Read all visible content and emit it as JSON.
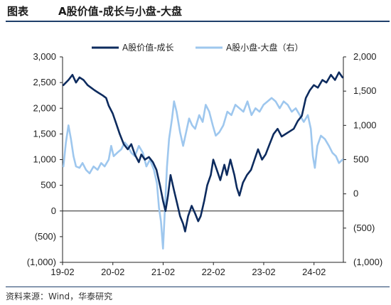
{
  "header": {
    "label": "图表",
    "title": "A股价值-成长与小盘-大盘"
  },
  "footer": {
    "source": "资料来源：Wind，华泰研究"
  },
  "chart_data": {
    "type": "line",
    "title": "A股价值-成长与小盘-大盘",
    "legend_position": "top",
    "x_ticks": [
      "19-02",
      "20-02",
      "21-02",
      "22-02",
      "23-02",
      "24-02"
    ],
    "y_left": {
      "ylim": [
        -1000,
        3000
      ],
      "tick_values": [
        3000,
        2500,
        2000,
        1500,
        1000,
        500,
        0,
        -500,
        -1000
      ],
      "tick_labels": [
        "3,000",
        "2,500",
        "2,000",
        "1,500",
        "1,000",
        "500",
        "0",
        "(500)",
        "(1,000)"
      ]
    },
    "y_right": {
      "ylim": [
        -1000,
        2000
      ],
      "tick_values": [
        2000,
        1500,
        1000,
        500,
        0,
        -500,
        -1000
      ],
      "tick_labels": [
        "2,000",
        "1,500",
        "1,000",
        "500",
        "0",
        "(500)",
        "(1,000)"
      ]
    },
    "x_range": [
      2019.083,
      2024.667
    ],
    "series": [
      {
        "name": "A股价值-成长",
        "axis": "left",
        "color": "#0d2b5e",
        "points": [
          [
            2019.1,
            2450
          ],
          [
            2019.2,
            2550
          ],
          [
            2019.28,
            2650
          ],
          [
            2019.35,
            2500
          ],
          [
            2019.42,
            2600
          ],
          [
            2019.5,
            2550
          ],
          [
            2019.58,
            2450
          ],
          [
            2019.65,
            2400
          ],
          [
            2019.72,
            2350
          ],
          [
            2019.8,
            2300
          ],
          [
            2019.88,
            2250
          ],
          [
            2019.95,
            2200
          ],
          [
            2020.0,
            2050
          ],
          [
            2020.08,
            1900
          ],
          [
            2020.15,
            1700
          ],
          [
            2020.22,
            1500
          ],
          [
            2020.3,
            1300
          ],
          [
            2020.38,
            1200
          ],
          [
            2020.45,
            1300
          ],
          [
            2020.52,
            1100
          ],
          [
            2020.6,
            950
          ],
          [
            2020.65,
            1100
          ],
          [
            2020.72,
            1000
          ],
          [
            2020.8,
            1050
          ],
          [
            2020.88,
            950
          ],
          [
            2020.95,
            800
          ],
          [
            2021.02,
            500
          ],
          [
            2021.08,
            200
          ],
          [
            2021.13,
            0
          ],
          [
            2021.18,
            300
          ],
          [
            2021.23,
            700
          ],
          [
            2021.3,
            400
          ],
          [
            2021.36,
            150
          ],
          [
            2021.42,
            -100
          ],
          [
            2021.48,
            -250
          ],
          [
            2021.52,
            -400
          ],
          [
            2021.58,
            -100
          ],
          [
            2021.65,
            100
          ],
          [
            2021.72,
            -50
          ],
          [
            2021.78,
            -200
          ],
          [
            2021.83,
            -100
          ],
          [
            2021.9,
            200
          ],
          [
            2021.96,
            500
          ],
          [
            2022.03,
            700
          ],
          [
            2022.08,
            1000
          ],
          [
            2022.15,
            800
          ],
          [
            2022.22,
            600
          ],
          [
            2022.3,
            900
          ],
          [
            2022.35,
            700
          ],
          [
            2022.42,
            1000
          ],
          [
            2022.5,
            700
          ],
          [
            2022.55,
            450
          ],
          [
            2022.6,
            300
          ],
          [
            2022.67,
            550
          ],
          [
            2022.75,
            700
          ],
          [
            2022.83,
            800
          ],
          [
            2022.9,
            1000
          ],
          [
            2022.97,
            1200
          ],
          [
            2023.05,
            1000
          ],
          [
            2023.12,
            1100
          ],
          [
            2023.2,
            1300
          ],
          [
            2023.28,
            1500
          ],
          [
            2023.36,
            1600
          ],
          [
            2023.44,
            1450
          ],
          [
            2023.52,
            1500
          ],
          [
            2023.6,
            1550
          ],
          [
            2023.68,
            1600
          ],
          [
            2023.76,
            1750
          ],
          [
            2023.84,
            1850
          ],
          [
            2023.92,
            2200
          ],
          [
            2024.0,
            2350
          ],
          [
            2024.08,
            2450
          ],
          [
            2024.16,
            2400
          ],
          [
            2024.25,
            2550
          ],
          [
            2024.33,
            2500
          ],
          [
            2024.42,
            2650
          ],
          [
            2024.5,
            2550
          ],
          [
            2024.58,
            2700
          ],
          [
            2024.65,
            2600
          ]
        ]
      },
      {
        "name": "A股小盘-大盘（右）",
        "axis": "right",
        "color": "#9ec7ee",
        "points": [
          [
            2019.1,
            400
          ],
          [
            2019.15,
            750
          ],
          [
            2019.2,
            1000
          ],
          [
            2019.25,
            800
          ],
          [
            2019.3,
            550
          ],
          [
            2019.35,
            400
          ],
          [
            2019.42,
            380
          ],
          [
            2019.48,
            450
          ],
          [
            2019.55,
            350
          ],
          [
            2019.62,
            300
          ],
          [
            2019.7,
            400
          ],
          [
            2019.78,
            350
          ],
          [
            2019.85,
            450
          ],
          [
            2019.92,
            400
          ],
          [
            2020.0,
            500
          ],
          [
            2020.05,
            700
          ],
          [
            2020.1,
            550
          ],
          [
            2020.17,
            600
          ],
          [
            2020.25,
            650
          ],
          [
            2020.32,
            750
          ],
          [
            2020.38,
            700
          ],
          [
            2020.45,
            600
          ],
          [
            2020.52,
            550
          ],
          [
            2020.6,
            700
          ],
          [
            2020.68,
            600
          ],
          [
            2020.75,
            400
          ],
          [
            2020.82,
            500
          ],
          [
            2020.9,
            350
          ],
          [
            2020.96,
            150
          ],
          [
            2021.0,
            -200
          ],
          [
            2021.04,
            -400
          ],
          [
            2021.08,
            -800
          ],
          [
            2021.12,
            -200
          ],
          [
            2021.16,
            400
          ],
          [
            2021.2,
            800
          ],
          [
            2021.26,
            1100
          ],
          [
            2021.3,
            1350
          ],
          [
            2021.35,
            1200
          ],
          [
            2021.42,
            900
          ],
          [
            2021.48,
            700
          ],
          [
            2021.54,
            900
          ],
          [
            2021.6,
            1100
          ],
          [
            2021.66,
            1000
          ],
          [
            2021.72,
            950
          ],
          [
            2021.8,
            1150
          ],
          [
            2021.87,
            1050
          ],
          [
            2021.93,
            1300
          ],
          [
            2022.0,
            1200
          ],
          [
            2022.07,
            1000
          ],
          [
            2022.13,
            850
          ],
          [
            2022.2,
            900
          ],
          [
            2022.28,
            1000
          ],
          [
            2022.36,
            1200
          ],
          [
            2022.44,
            1150
          ],
          [
            2022.52,
            1300
          ],
          [
            2022.6,
            1250
          ],
          [
            2022.68,
            1200
          ],
          [
            2022.76,
            1350
          ],
          [
            2022.84,
            1150
          ],
          [
            2022.92,
            1250
          ],
          [
            2023.0,
            1200
          ],
          [
            2023.08,
            1300
          ],
          [
            2023.16,
            1350
          ],
          [
            2023.24,
            1400
          ],
          [
            2023.32,
            1350
          ],
          [
            2023.4,
            1250
          ],
          [
            2023.48,
            1350
          ],
          [
            2023.56,
            1300
          ],
          [
            2023.64,
            1200
          ],
          [
            2023.72,
            1250
          ],
          [
            2023.8,
            1150
          ],
          [
            2023.88,
            1050
          ],
          [
            2023.96,
            1150
          ],
          [
            2024.02,
            950
          ],
          [
            2024.06,
            550
          ],
          [
            2024.1,
            380
          ],
          [
            2024.15,
            700
          ],
          [
            2024.22,
            850
          ],
          [
            2024.3,
            800
          ],
          [
            2024.38,
            700
          ],
          [
            2024.45,
            600
          ],
          [
            2024.52,
            550
          ],
          [
            2024.58,
            450
          ],
          [
            2024.65,
            500
          ]
        ]
      }
    ]
  }
}
